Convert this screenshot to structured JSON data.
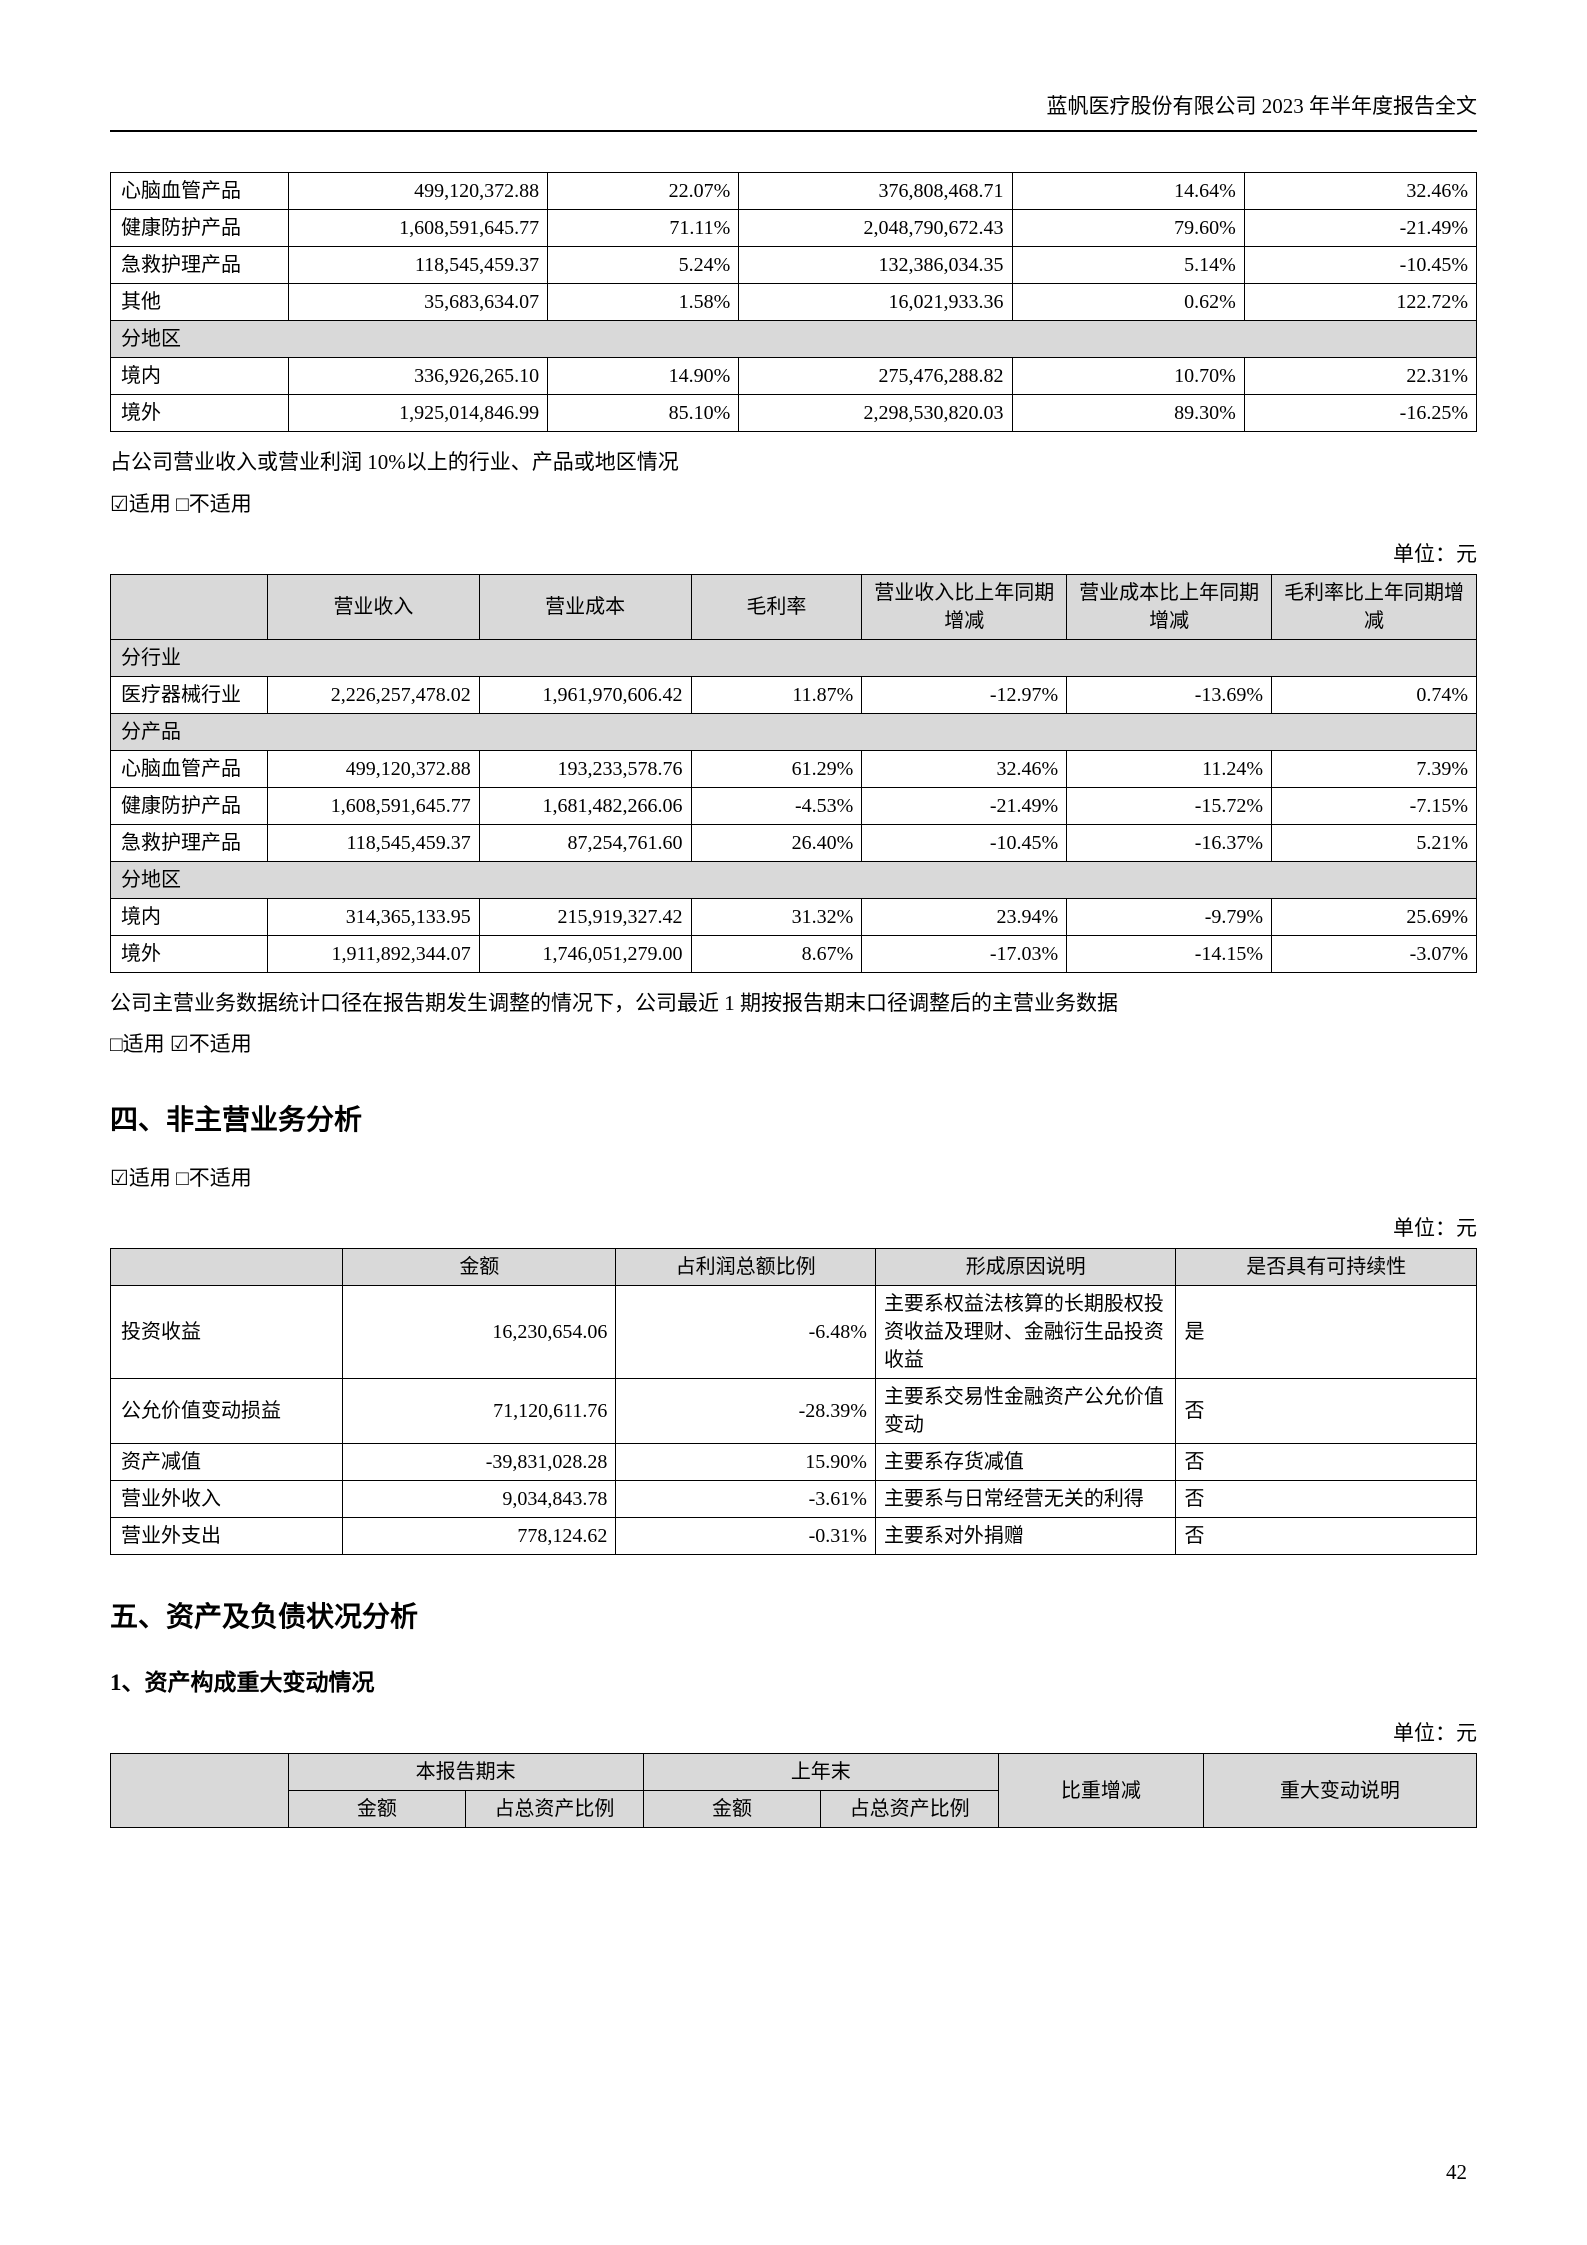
{
  "header": "蓝帆医疗股份有限公司 2023 年半年度报告全文",
  "page_number": "42",
  "table1": {
    "rows": [
      [
        "心脑血管产品",
        "499,120,372.88",
        "22.07%",
        "376,808,468.71",
        "14.64%",
        "32.46%"
      ],
      [
        "健康防护产品",
        "1,608,591,645.77",
        "71.11%",
        "2,048,790,672.43",
        "79.60%",
        "-21.49%"
      ],
      [
        "急救护理产品",
        "118,545,459.37",
        "5.24%",
        "132,386,034.35",
        "5.14%",
        "-10.45%"
      ],
      [
        "其他",
        "35,683,634.07",
        "1.58%",
        "16,021,933.36",
        "0.62%",
        "122.72%"
      ]
    ],
    "section_region": "分地区",
    "region_rows": [
      [
        "境内",
        "336,926,265.10",
        "14.90%",
        "275,476,288.82",
        "10.70%",
        "22.31%"
      ],
      [
        "境外",
        "1,925,014,846.99",
        "85.10%",
        "2,298,530,820.03",
        "89.30%",
        "-16.25%"
      ]
    ]
  },
  "note1": "占公司营业收入或营业利润 10%以上的行业、产品或地区情况",
  "check1": "☑适用 □不适用",
  "unit_label": "单位：元",
  "table2": {
    "headers": [
      "",
      "营业收入",
      "营业成本",
      "毛利率",
      "营业收入比上年同期增减",
      "营业成本比上年同期增减",
      "毛利率比上年同期增减"
    ],
    "sec_industry": "分行业",
    "industry_rows": [
      [
        "医疗器械行业",
        "2,226,257,478.02",
        "1,961,970,606.42",
        "11.87%",
        "-12.97%",
        "-13.69%",
        "0.74%"
      ]
    ],
    "sec_product": "分产品",
    "product_rows": [
      [
        "心脑血管产品",
        "499,120,372.88",
        "193,233,578.76",
        "61.29%",
        "32.46%",
        "11.24%",
        "7.39%"
      ],
      [
        "健康防护产品",
        "1,608,591,645.77",
        "1,681,482,266.06",
        "-4.53%",
        "-21.49%",
        "-15.72%",
        "-7.15%"
      ],
      [
        "急救护理产品",
        "118,545,459.37",
        "87,254,761.60",
        "26.40%",
        "-10.45%",
        "-16.37%",
        "5.21%"
      ]
    ],
    "sec_region": "分地区",
    "region_rows": [
      [
        "境内",
        "314,365,133.95",
        "215,919,327.42",
        "31.32%",
        "23.94%",
        "-9.79%",
        "25.69%"
      ],
      [
        "境外",
        "1,911,892,344.07",
        "1,746,051,279.00",
        "8.67%",
        "-17.03%",
        "-14.15%",
        "-3.07%"
      ]
    ]
  },
  "note2": "公司主营业务数据统计口径在报告期发生调整的情况下，公司最近 1 期按报告期末口径调整后的主营业务数据",
  "check2": "□适用 ☑不适用",
  "sec4_title": "四、非主营业务分析",
  "check3": "☑适用 □不适用",
  "table3": {
    "headers": [
      "",
      "金额",
      "占利润总额比例",
      "形成原因说明",
      "是否具有可持续性"
    ],
    "rows": [
      [
        "投资收益",
        "16,230,654.06",
        "-6.48%",
        "主要系权益法核算的长期股权投资收益及理财、金融衍生品投资收益",
        "是"
      ],
      [
        "公允价值变动损益",
        "71,120,611.76",
        "-28.39%",
        "主要系交易性金融资产公允价值变动",
        "否"
      ],
      [
        "资产减值",
        "-39,831,028.28",
        "15.90%",
        "主要系存货减值",
        "否"
      ],
      [
        "营业外收入",
        "9,034,843.78",
        "-3.61%",
        "主要系与日常经营无关的利得",
        "否"
      ],
      [
        "营业外支出",
        "778,124.62",
        "-0.31%",
        "主要系对外捐赠",
        "否"
      ]
    ]
  },
  "sec5_title": "五、资产及负债状况分析",
  "sec5_sub1": "1、资产构成重大变动情况",
  "table4": {
    "h_current": "本报告期末",
    "h_prior": "上年末",
    "h_amount": "金额",
    "h_ratio": "占总资产比例",
    "h_change": "比重增减",
    "h_reason": "重大变动说明"
  }
}
